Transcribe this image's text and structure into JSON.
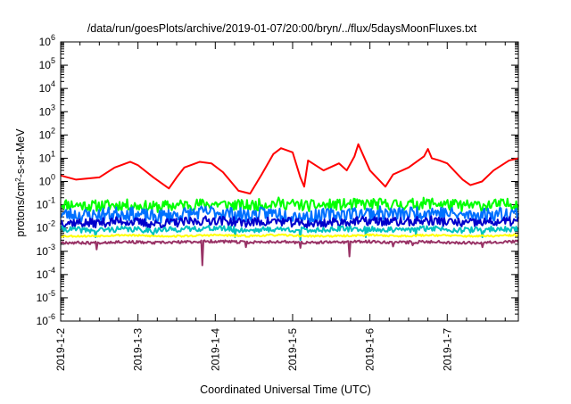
{
  "chart_data": {
    "type": "line",
    "title": "/data/run/goesPlots/archive/2019-01-07/20:00/bryn/../flux/5daysMoonFluxes.txt",
    "xlabel": "Coordinated Universal Time (UTC)",
    "ylabel_parts": {
      "base": "protons/cm",
      "sup": "2",
      "rest": "-s-sr-MeV"
    },
    "x_unit": "days since 2019-01-02 00:00 UTC",
    "xlim": [
      0,
      5.92
    ],
    "ylim": [
      1e-06,
      1000000.0
    ],
    "yscale": "log",
    "x_ticks": [
      {
        "x": 0,
        "label": "2019-1-2"
      },
      {
        "x": 1,
        "label": "2019-1-3"
      },
      {
        "x": 2,
        "label": "2019-1-4"
      },
      {
        "x": 3,
        "label": "2019-1-5"
      },
      {
        "x": 4,
        "label": "2019-1-6"
      },
      {
        "x": 5,
        "label": "2019-1-7"
      }
    ],
    "y_ticks": [
      {
        "value": 1e-06,
        "base": "10",
        "exp": "-6"
      },
      {
        "value": 1e-05,
        "base": "10",
        "exp": "-5"
      },
      {
        "value": 0.0001,
        "base": "10",
        "exp": "-4"
      },
      {
        "value": 0.001,
        "base": "10",
        "exp": "-3"
      },
      {
        "value": 0.01,
        "base": "10",
        "exp": "-2"
      },
      {
        "value": 0.1,
        "base": "10",
        "exp": "-1"
      },
      {
        "value": 1,
        "base": "10",
        "exp": "0"
      },
      {
        "value": 10,
        "base": "10",
        "exp": "1"
      },
      {
        "value": 100,
        "base": "10",
        "exp": "2"
      },
      {
        "value": 1000,
        "base": "10",
        "exp": "3"
      },
      {
        "value": 10000,
        "base": "10",
        "exp": "4"
      },
      {
        "value": 100000,
        "base": "10",
        "exp": "5"
      },
      {
        "value": 1000000,
        "base": "10",
        "exp": "6"
      }
    ],
    "grid": false,
    "legend": false,
    "series": [
      {
        "color": "#ff0000",
        "x": [
          0,
          0.2,
          0.5,
          0.7,
          0.9,
          1.0,
          1.2,
          1.4,
          1.5,
          1.6,
          1.8,
          1.95,
          2.1,
          2.3,
          2.45,
          2.6,
          2.75,
          2.85,
          3.0,
          3.1,
          3.15,
          3.2,
          3.4,
          3.6,
          3.7,
          3.8,
          3.85,
          4.0,
          4.2,
          4.3,
          4.5,
          4.7,
          4.75,
          4.8,
          4.9,
          5.0,
          5.2,
          5.3,
          5.45,
          5.6,
          5.8,
          5.92
        ],
        "y": [
          1.8,
          1.2,
          1.5,
          4,
          7,
          5,
          1.5,
          0.5,
          1.5,
          4,
          7,
          6,
          2.5,
          0.4,
          0.3,
          2,
          15,
          27,
          18,
          1.5,
          0.6,
          8,
          3,
          6,
          3,
          12,
          40,
          3,
          0.6,
          2,
          4,
          12,
          25,
          10,
          8,
          6,
          1.2,
          0.7,
          1.0,
          3,
          8,
          10
        ]
      },
      {
        "color": "#00ff00",
        "x": [
          0,
          0.4,
          0.8,
          1.2,
          1.6,
          2.0,
          2.4,
          2.8,
          3.2,
          3.6,
          4.0,
          4.4,
          4.8,
          5.2,
          5.6,
          5.92
        ],
        "y": [
          0.11,
          0.09,
          0.1,
          0.08,
          0.1,
          0.11,
          0.09,
          0.12,
          0.09,
          0.1,
          0.11,
          0.1,
          0.12,
          0.09,
          0.1,
          0.11
        ],
        "noise_amp": 0.25,
        "noise_seed": 11
      },
      {
        "color": "#0070ff",
        "x": [
          0,
          0.4,
          0.8,
          1.2,
          1.6,
          2.0,
          2.4,
          2.8,
          3.2,
          3.6,
          4.0,
          4.4,
          4.8,
          5.2,
          5.6,
          5.92
        ],
        "y": [
          0.04,
          0.035,
          0.045,
          0.03,
          0.04,
          0.05,
          0.035,
          0.045,
          0.03,
          0.04,
          0.045,
          0.04,
          0.05,
          0.035,
          0.04,
          0.045
        ],
        "noise_amp": 0.3,
        "noise_seed": 23
      },
      {
        "color": "#0000cc",
        "x": [
          0,
          0.4,
          0.8,
          1.2,
          1.6,
          2.0,
          2.4,
          2.8,
          3.2,
          3.6,
          4.0,
          4.4,
          4.8,
          5.2,
          5.6,
          5.92
        ],
        "y": [
          0.018,
          0.016,
          0.02,
          0.015,
          0.018,
          0.022,
          0.017,
          0.02,
          0.015,
          0.018,
          0.02,
          0.018,
          0.021,
          0.016,
          0.018,
          0.02
        ],
        "noise_amp": 0.2,
        "noise_seed": 37
      },
      {
        "color": "#00c0c0",
        "x": [
          0,
          0.4,
          0.8,
          1.2,
          1.6,
          2.0,
          2.4,
          2.8,
          3.2,
          3.6,
          4.0,
          4.4,
          4.8,
          5.2,
          5.6,
          5.92
        ],
        "y": [
          0.009,
          0.008,
          0.009,
          0.008,
          0.009,
          0.01,
          0.008,
          0.009,
          0.008,
          0.009,
          0.009,
          0.008,
          0.01,
          0.008,
          0.009,
          0.009
        ],
        "noise_amp": 0.12,
        "noise_seed": 41,
        "dips": [
          {
            "x": 0.45,
            "y": 0.004
          },
          {
            "x": 1.2,
            "y": 0.005
          },
          {
            "x": 2.25,
            "y": 0.004
          },
          {
            "x": 3.1,
            "y": 0.003
          },
          {
            "x": 3.95,
            "y": 0.004
          },
          {
            "x": 4.6,
            "y": 0.005
          },
          {
            "x": 5.45,
            "y": 0.004
          }
        ]
      },
      {
        "color": "#ffff00",
        "x": [
          0,
          0.4,
          0.8,
          1.2,
          1.6,
          2.0,
          2.4,
          2.8,
          3.2,
          3.6,
          4.0,
          4.4,
          4.8,
          5.2,
          5.6,
          5.92
        ],
        "y": [
          0.0045,
          0.0045,
          0.005,
          0.0045,
          0.0045,
          0.005,
          0.0045,
          0.005,
          0.0045,
          0.0045,
          0.005,
          0.0045,
          0.005,
          0.0045,
          0.0045,
          0.005
        ],
        "noise_amp": 0.04,
        "noise_seed": 53
      },
      {
        "color": "#993366",
        "x": [
          0,
          0.4,
          0.8,
          1.2,
          1.6,
          2.0,
          2.4,
          2.8,
          3.2,
          3.6,
          4.0,
          4.4,
          4.8,
          5.2,
          5.6,
          5.92
        ],
        "y": [
          0.0024,
          0.0023,
          0.0026,
          0.0023,
          0.0025,
          0.0027,
          0.0024,
          0.0026,
          0.0023,
          0.0025,
          0.0026,
          0.0024,
          0.0026,
          0.0023,
          0.0025,
          0.0026
        ],
        "noise_amp": 0.06,
        "noise_seed": 67,
        "dips": [
          {
            "x": 0.47,
            "y": 0.0012
          },
          {
            "x": 1.83,
            "y": 0.00025
          },
          {
            "x": 2.4,
            "y": 0.0015
          },
          {
            "x": 3.1,
            "y": 0.0014
          },
          {
            "x": 3.73,
            "y": 0.0006
          },
          {
            "x": 4.3,
            "y": 0.0016
          },
          {
            "x": 4.55,
            "y": 0.0018
          },
          {
            "x": 5.45,
            "y": 0.0015
          }
        ]
      }
    ]
  }
}
